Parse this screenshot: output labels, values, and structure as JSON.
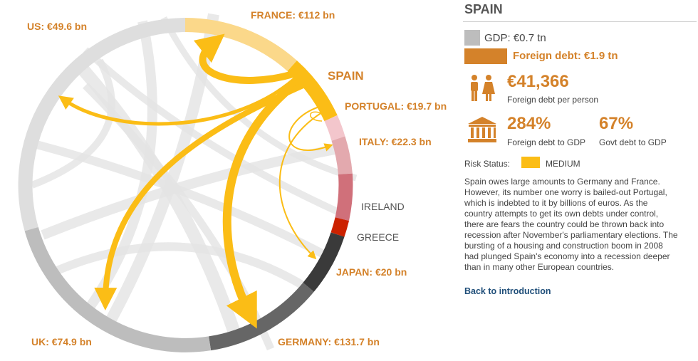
{
  "diagram": {
    "country_labels": {
      "us": "US: €49.6 bn",
      "france": "FRANCE: €112 bn",
      "spain": "SPAIN",
      "portugal": "PORTUGAL: €19.7 bn",
      "italy": "ITALY: €22.3 bn",
      "ireland": "IRELAND",
      "greece": "GREECE",
      "japan": "JAPAN: €20 bn",
      "germany": "GERMANY: €131.7 bn",
      "uk": "UK: €74.9 bn"
    },
    "colors": {
      "highlight": "#fbbd16",
      "label": "#d4822a",
      "background_flows": "#e4e4e4"
    }
  },
  "panel": {
    "title": "SPAIN",
    "gdp": "GDP: €0.7 tn",
    "foreign_debt": "Foreign debt: €1.9 tn",
    "per_person_value": "€41,366",
    "per_person_label": "Foreign debt per person",
    "foreign_debt_gdp_value": "284%",
    "foreign_debt_gdp_label": "Foreign debt to GDP",
    "govt_debt_gdp_value": "67%",
    "govt_debt_gdp_label": "Govt debt to GDP",
    "risk_label": "Risk Status:",
    "risk_value": "MEDIUM",
    "description_lines": [
      "Spain owes large amounts to Germany and France.",
      "However, its number one worry is bailed-out Portugal,",
      "which is indebted to it by billions of euros. As the",
      "country attempts to get its own debts under control,",
      "there are fears the country could be thrown back into",
      "recession after November's parliamentary elections. The",
      "bursting of a housing and construction boom in 2008",
      "had plunged Spain's economy into a recession deeper",
      "than in many other European countries."
    ],
    "back_link": "Back to introduction"
  }
}
